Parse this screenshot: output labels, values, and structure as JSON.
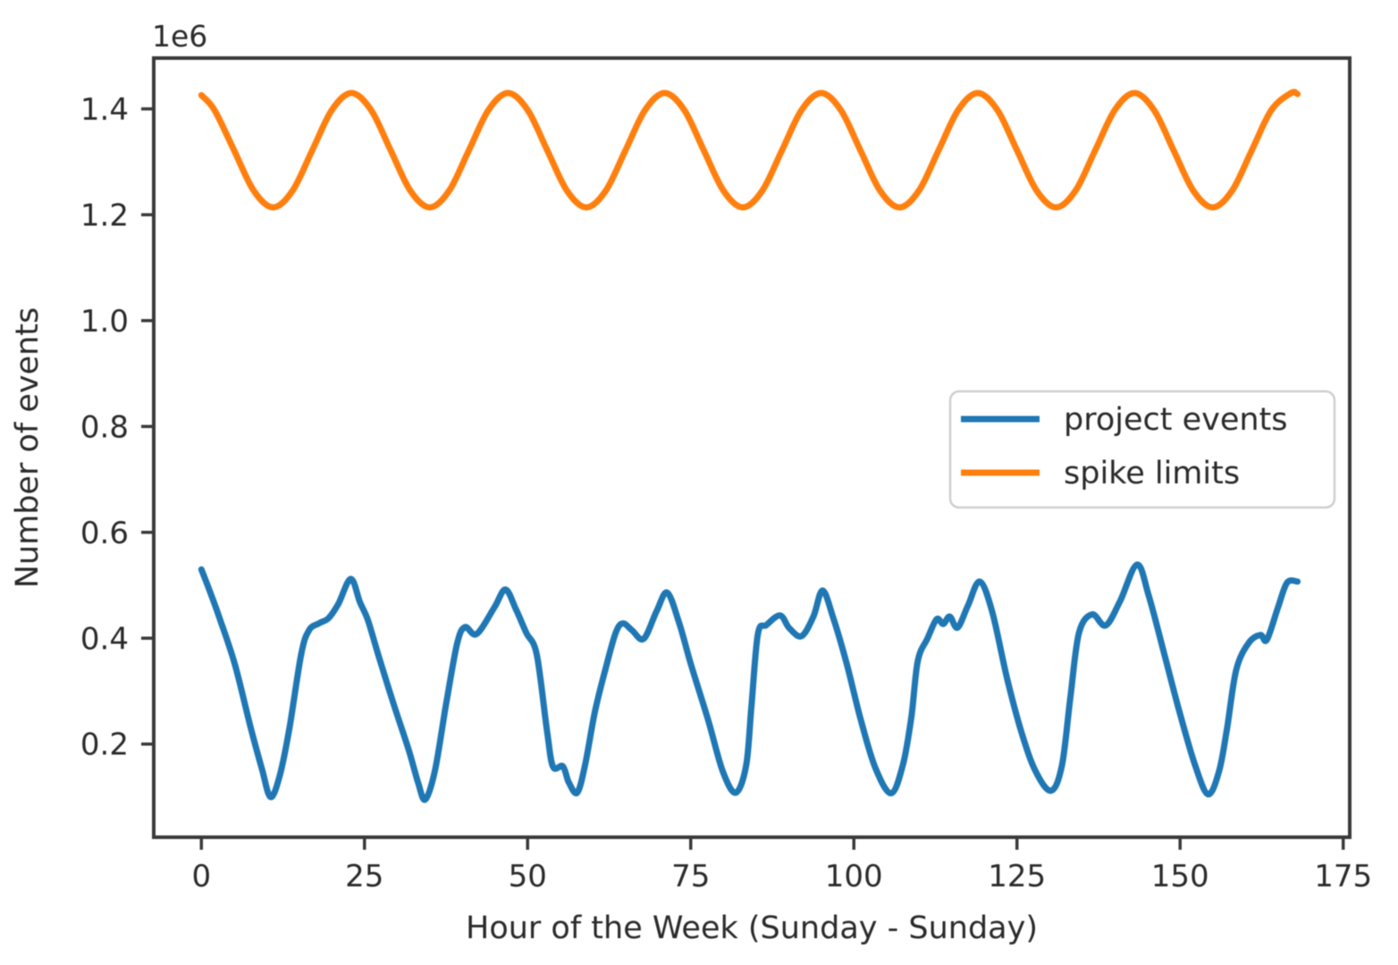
{
  "chart_data": {
    "type": "line",
    "title": "",
    "xlabel": "Hour of the Week (Sunday - Sunday)",
    "ylabel": "Number of events",
    "y_offset_text": "1e6",
    "y_unit_multiplier": 1000000,
    "x_ticks": [
      0,
      25,
      50,
      75,
      100,
      125,
      150,
      175
    ],
    "y_ticks": [
      0.2,
      0.4,
      0.6,
      0.8,
      1.0,
      1.2,
      1.4
    ],
    "y_tick_labels": [
      "0.2",
      "0.4",
      "0.6",
      "0.8",
      "1.0",
      "1.2",
      "1.4"
    ],
    "xlim": [
      -7.3,
      176.0
    ],
    "ylim": [
      0.024,
      1.496
    ],
    "grid": false,
    "legend_position": "center-right",
    "series": [
      {
        "name": "project events",
        "color": "#1f77b4",
        "points": [
          [
            0,
            0.53
          ],
          [
            1.2,
            0.492
          ],
          [
            2.7,
            0.441
          ],
          [
            5.1,
            0.352
          ],
          [
            7.5,
            0.234
          ],
          [
            9.3,
            0.152
          ],
          [
            10.6,
            0.1
          ],
          [
            12.0,
            0.14
          ],
          [
            13.5,
            0.23
          ],
          [
            15.3,
            0.37
          ],
          [
            16.5,
            0.415
          ],
          [
            18.0,
            0.428
          ],
          [
            19.5,
            0.438
          ],
          [
            21.0,
            0.465
          ],
          [
            22.9,
            0.512
          ],
          [
            24.3,
            0.468
          ],
          [
            25.5,
            0.435
          ],
          [
            27.1,
            0.369
          ],
          [
            29.4,
            0.278
          ],
          [
            31.8,
            0.188
          ],
          [
            33.2,
            0.128
          ],
          [
            34.3,
            0.095
          ],
          [
            35.8,
            0.15
          ],
          [
            37.5,
            0.275
          ],
          [
            39.2,
            0.39
          ],
          [
            40.4,
            0.421
          ],
          [
            42.2,
            0.408
          ],
          [
            44.9,
            0.458
          ],
          [
            46.6,
            0.492
          ],
          [
            48.2,
            0.455
          ],
          [
            49.8,
            0.41
          ],
          [
            51.4,
            0.369
          ],
          [
            53.0,
            0.222
          ],
          [
            53.9,
            0.157
          ],
          [
            55.4,
            0.158
          ],
          [
            56.3,
            0.128
          ],
          [
            57.6,
            0.108
          ],
          [
            58.8,
            0.16
          ],
          [
            60.3,
            0.26
          ],
          [
            61.9,
            0.34
          ],
          [
            63.5,
            0.41
          ],
          [
            64.6,
            0.428
          ],
          [
            66.0,
            0.415
          ],
          [
            67.8,
            0.399
          ],
          [
            69.8,
            0.452
          ],
          [
            71.4,
            0.486
          ],
          [
            73.2,
            0.43
          ],
          [
            75.0,
            0.352
          ],
          [
            77.7,
            0.244
          ],
          [
            79.9,
            0.149
          ],
          [
            81.9,
            0.108
          ],
          [
            83.5,
            0.16
          ],
          [
            84.3,
            0.27
          ],
          [
            85.3,
            0.408
          ],
          [
            86.6,
            0.425
          ],
          [
            88.7,
            0.443
          ],
          [
            90.1,
            0.419
          ],
          [
            92.0,
            0.404
          ],
          [
            93.8,
            0.441
          ],
          [
            95.2,
            0.49
          ],
          [
            96.8,
            0.44
          ],
          [
            98.9,
            0.352
          ],
          [
            101.1,
            0.244
          ],
          [
            103.3,
            0.155
          ],
          [
            105.7,
            0.107
          ],
          [
            107.5,
            0.16
          ],
          [
            108.8,
            0.25
          ],
          [
            109.8,
            0.357
          ],
          [
            111.3,
            0.4
          ],
          [
            112.7,
            0.436
          ],
          [
            113.7,
            0.427
          ],
          [
            114.7,
            0.441
          ],
          [
            115.9,
            0.42
          ],
          [
            117.5,
            0.462
          ],
          [
            119.3,
            0.507
          ],
          [
            121.2,
            0.45
          ],
          [
            123.5,
            0.323
          ],
          [
            125.7,
            0.222
          ],
          [
            127.8,
            0.15
          ],
          [
            130.2,
            0.112
          ],
          [
            131.9,
            0.16
          ],
          [
            133.2,
            0.29
          ],
          [
            134.5,
            0.41
          ],
          [
            136.5,
            0.445
          ],
          [
            138.6,
            0.424
          ],
          [
            140.8,
            0.47
          ],
          [
            143.4,
            0.539
          ],
          [
            145.2,
            0.48
          ],
          [
            147.6,
            0.369
          ],
          [
            149.9,
            0.261
          ],
          [
            152.3,
            0.16
          ],
          [
            154.3,
            0.105
          ],
          [
            156.0,
            0.15
          ],
          [
            157.2,
            0.23
          ],
          [
            158.6,
            0.34
          ],
          [
            160.5,
            0.391
          ],
          [
            162.3,
            0.406
          ],
          [
            163.3,
            0.397
          ],
          [
            165.0,
            0.458
          ],
          [
            166.4,
            0.505
          ],
          [
            168,
            0.507
          ]
        ]
      },
      {
        "name": "spike limits",
        "color": "#ff7f0e",
        "points": [
          [
            0,
            1.426
          ],
          [
            2,
            1.398
          ],
          [
            5,
            1.322
          ],
          [
            8,
            1.246
          ],
          [
            11,
            1.214
          ],
          [
            14,
            1.246
          ],
          [
            17,
            1.322
          ],
          [
            20,
            1.398
          ],
          [
            23,
            1.43
          ],
          [
            26,
            1.398
          ],
          [
            29,
            1.322
          ],
          [
            32,
            1.246
          ],
          [
            35,
            1.214
          ],
          [
            38,
            1.246
          ],
          [
            41,
            1.322
          ],
          [
            44,
            1.398
          ],
          [
            47,
            1.43
          ],
          [
            50,
            1.398
          ],
          [
            53,
            1.322
          ],
          [
            56,
            1.246
          ],
          [
            59,
            1.214
          ],
          [
            62,
            1.246
          ],
          [
            65,
            1.322
          ],
          [
            68,
            1.398
          ],
          [
            71,
            1.43
          ],
          [
            74,
            1.398
          ],
          [
            77,
            1.322
          ],
          [
            80,
            1.246
          ],
          [
            83,
            1.214
          ],
          [
            86,
            1.246
          ],
          [
            89,
            1.322
          ],
          [
            92,
            1.398
          ],
          [
            95,
            1.43
          ],
          [
            98,
            1.398
          ],
          [
            101,
            1.322
          ],
          [
            104,
            1.246
          ],
          [
            107,
            1.214
          ],
          [
            110,
            1.246
          ],
          [
            113,
            1.322
          ],
          [
            116,
            1.398
          ],
          [
            119,
            1.43
          ],
          [
            122,
            1.398
          ],
          [
            125,
            1.322
          ],
          [
            128,
            1.246
          ],
          [
            131,
            1.214
          ],
          [
            134,
            1.246
          ],
          [
            137,
            1.322
          ],
          [
            140,
            1.398
          ],
          [
            143,
            1.43
          ],
          [
            146,
            1.398
          ],
          [
            149,
            1.322
          ],
          [
            152,
            1.246
          ],
          [
            155,
            1.214
          ],
          [
            158,
            1.246
          ],
          [
            161,
            1.322
          ],
          [
            164,
            1.398
          ],
          [
            167,
            1.43
          ],
          [
            168,
            1.428
          ]
        ]
      }
    ]
  }
}
